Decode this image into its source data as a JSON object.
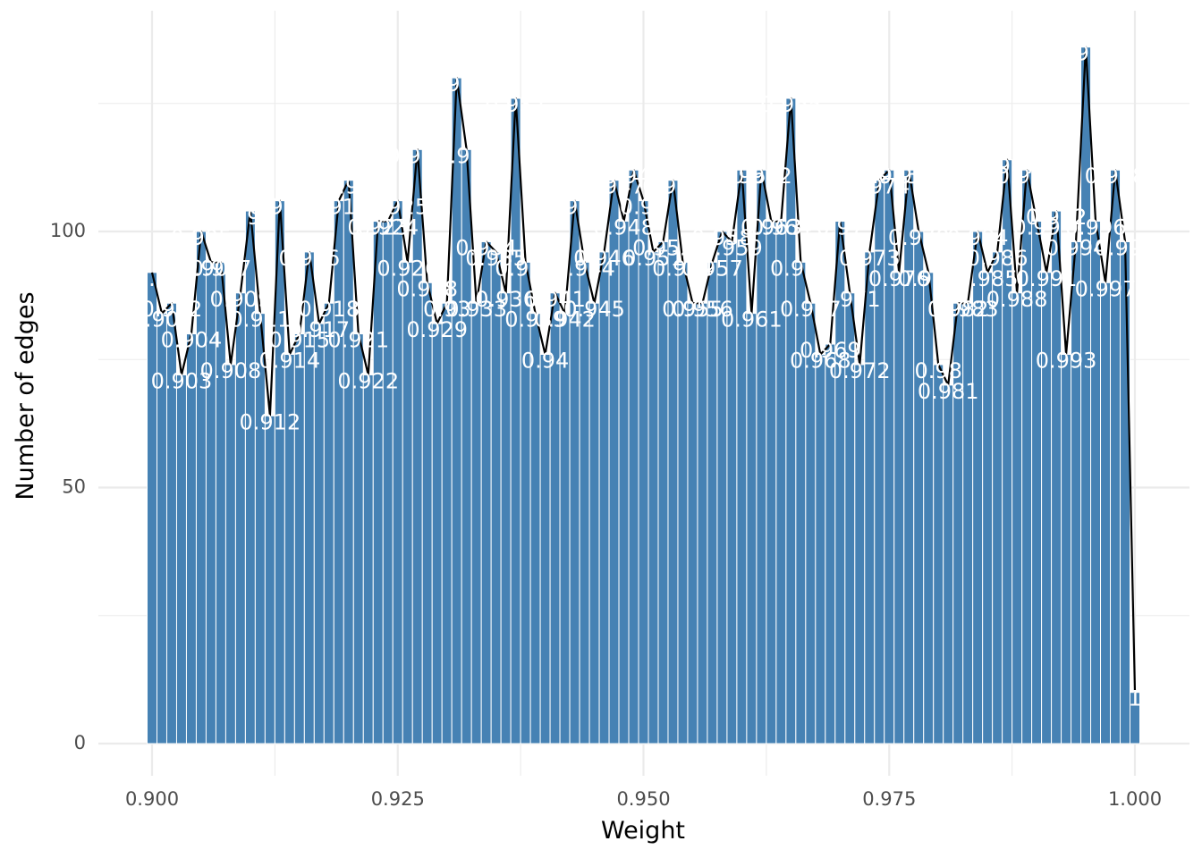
{
  "chart_data": {
    "type": "bar",
    "title": "",
    "xlabel": "Weight",
    "ylabel": "Number of edges",
    "xlim": [
      0.8995,
      1.0005
    ],
    "ylim": [
      0,
      136
    ],
    "x_ticks": [
      "0.900",
      "0.925",
      "0.950",
      "0.975",
      "1.000"
    ],
    "x_tick_values": [
      0.9,
      0.925,
      0.95,
      0.975,
      1.0
    ],
    "y_ticks": [
      "0",
      "50",
      "100"
    ],
    "y_tick_values": [
      0,
      50,
      100
    ],
    "grid": true,
    "bar_color": "#4682b4",
    "line_color": "#000000",
    "label_color": "#ffffff",
    "series": [
      {
        "x": [
          0.9,
          0.901,
          0.902,
          0.903,
          0.904,
          0.905,
          0.906,
          0.907,
          0.908,
          0.909,
          0.91,
          0.911,
          0.912,
          0.913,
          0.914,
          0.915,
          0.916,
          0.917,
          0.918,
          0.919,
          0.92,
          0.921,
          0.922,
          0.923,
          0.924,
          0.925,
          0.926,
          0.927,
          0.928,
          0.929,
          0.93,
          0.931,
          0.932,
          0.933,
          0.934,
          0.935,
          0.936,
          0.937,
          0.938,
          0.939,
          0.94,
          0.941,
          0.942,
          0.943,
          0.944,
          0.945,
          0.946,
          0.947,
          0.948,
          0.949,
          0.95,
          0.951,
          0.952,
          0.953,
          0.954,
          0.955,
          0.956,
          0.957,
          0.958,
          0.959,
          0.96,
          0.961,
          0.962,
          0.963,
          0.964,
          0.965,
          0.966,
          0.967,
          0.968,
          0.969,
          0.97,
          0.971,
          0.972,
          0.973,
          0.974,
          0.975,
          0.976,
          0.977,
          0.978,
          0.979,
          0.98,
          0.981,
          0.982,
          0.983,
          0.984,
          0.985,
          0.986,
          0.987,
          0.988,
          0.989,
          0.99,
          0.991,
          0.992,
          0.993,
          0.994,
          0.995,
          0.996,
          0.997,
          0.998,
          0.999,
          1.0
        ],
        "values": [
          92,
          84,
          86,
          72,
          80,
          100,
          94,
          94,
          74,
          88,
          104,
          84,
          64,
          106,
          76,
          80,
          96,
          82,
          86,
          106,
          110,
          80,
          72,
          102,
          102,
          106,
          94,
          116,
          90,
          82,
          86,
          130,
          116,
          86,
          98,
          96,
          88,
          126,
          94,
          84,
          76,
          88,
          84,
          106,
          94,
          86,
          96,
          110,
          102,
          112,
          106,
          96,
          98,
          110,
          94,
          86,
          86,
          94,
          100,
          98,
          112,
          84,
          112,
          102,
          102,
          126,
          94,
          86,
          76,
          78,
          102,
          88,
          74,
          96,
          110,
          112,
          92,
          112,
          100,
          92,
          74,
          70,
          86,
          86,
          100,
          92,
          96,
          114,
          88,
          112,
          102,
          92,
          104,
          76,
          98,
          136,
          102,
          90,
          112,
          98,
          10
        ]
      }
    ],
    "labels": [
      "0.9",
      "0.901",
      "0.902",
      "0.903",
      "0.904",
      "0.905",
      "0.906",
      "0.907",
      "0.908",
      "0.909",
      "0.91",
      "0.911",
      "0.912",
      "0.913",
      "0.914",
      "0.915",
      "0.916",
      "0.917",
      "0.918",
      "0.919",
      "0.92",
      "0.921",
      "0.922",
      "0.923",
      "0.924",
      "0.925",
      "0.926",
      "0.927",
      "0.928",
      "0.929",
      "0.93",
      "0.931",
      "0.932",
      "0.933",
      "0.934",
      "0.935",
      "0.936",
      "0.937",
      "0.938",
      "0.939",
      "0.94",
      "0.941",
      "0.942",
      "0.943",
      "0.944",
      "0.945",
      "0.946",
      "0.947",
      "0.948",
      "0.949",
      "0.95",
      "0.951",
      "0.952",
      "0.953",
      "0.954",
      "0.955",
      "0.956",
      "0.957",
      "0.958",
      "0.959",
      "0.96",
      "0.961",
      "0.962",
      "0.963",
      "0.964",
      "0.965",
      "0.966",
      "0.967",
      "0.968",
      "0.969",
      "0.97",
      "0.971",
      "0.972",
      "0.973",
      "0.974",
      "0.975",
      "0.976",
      "0.977",
      "0.978",
      "0.979",
      "0.98",
      "0.981",
      "0.982",
      "0.983",
      "0.984",
      "0.985",
      "0.986",
      "0.987",
      "0.988",
      "0.989",
      "0.99",
      "0.991",
      "0.992",
      "0.993",
      "0.994",
      "0.995",
      "0.996",
      "0.997",
      "0.998",
      "0.999",
      "1"
    ]
  }
}
